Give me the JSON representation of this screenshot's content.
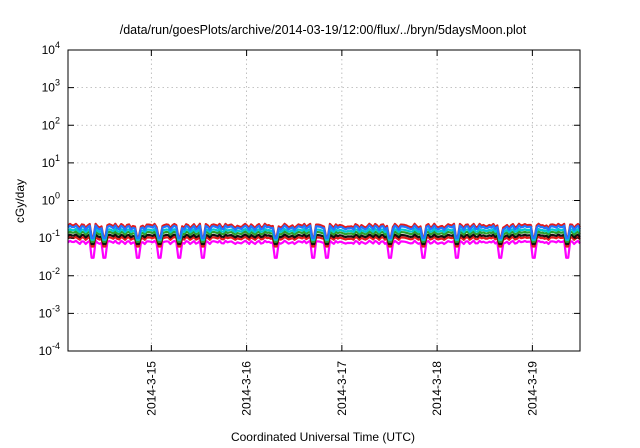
{
  "chart_data": {
    "type": "line",
    "title": "/data/run/goesPlots/archive/2014-03-19/12:00/flux/../bryn/5daysMoon.plot",
    "xlabel": "Coordinated Universal Time (UTC)",
    "ylabel": "cGy/day",
    "yscale": "log",
    "ylim": [
      0.0001,
      10000
    ],
    "xlim": [
      "2014-03-14 03:00",
      "2014-03-19 12:00"
    ],
    "grid": true,
    "x_ticks": [
      "2014-3-15",
      "2014-3-16",
      "2014-3-17",
      "2014-3-18",
      "2014-3-19"
    ],
    "y_ticks": [
      {
        "value": 0.0001,
        "base": "10",
        "exp": "-4"
      },
      {
        "value": 0.001,
        "base": "10",
        "exp": "-3"
      },
      {
        "value": 0.01,
        "base": "10",
        "exp": "-2"
      },
      {
        "value": 0.1,
        "base": "10",
        "exp": "-1"
      },
      {
        "value": 1,
        "base": "10",
        "exp": "0"
      },
      {
        "value": 10,
        "base": "10",
        "exp": "1"
      },
      {
        "value": 100,
        "base": "10",
        "exp": "2"
      },
      {
        "value": 1000,
        "base": "10",
        "exp": "3"
      },
      {
        "value": 10000,
        "base": "10",
        "exp": "4"
      }
    ],
    "series": [
      {
        "color": "#ff00ff",
        "base": 0.085,
        "low": 0.068,
        "dip_min": 0.03
      },
      {
        "color": "#e41a1c",
        "base": 0.108,
        "low": 0.088,
        "dip_min": 0.06
      },
      {
        "color": "#111111",
        "base": 0.125,
        "low": 0.102,
        "dip_min": 0.07
      },
      {
        "color": "#2ca02c",
        "base": 0.15,
        "low": 0.12,
        "dip_min": 0.08
      },
      {
        "color": "#00c8d0",
        "base": 0.175,
        "low": 0.14,
        "dip_min": 0.09
      },
      {
        "color": "#e41a1c",
        "base": 0.24,
        "low": 0.18,
        "dip_min": 0.11
      },
      {
        "color": "#1f77ff",
        "base": 0.215,
        "low": 0.16,
        "dip_min": 0.1
      }
    ],
    "dip_times": [
      "2014-03-14 09:00",
      "2014-03-14 12:00",
      "2014-03-14 20:30",
      "2014-03-15 02:00",
      "2014-03-15 07:00",
      "2014-03-15 13:00",
      "2014-03-16 07:30",
      "2014-03-16 17:00",
      "2014-03-16 20:00",
      "2014-03-17 12:00",
      "2014-03-17 20:30",
      "2014-03-18 05:00",
      "2014-03-18 16:00",
      "2014-03-19 00:30",
      "2014-03-19 09:00"
    ]
  }
}
